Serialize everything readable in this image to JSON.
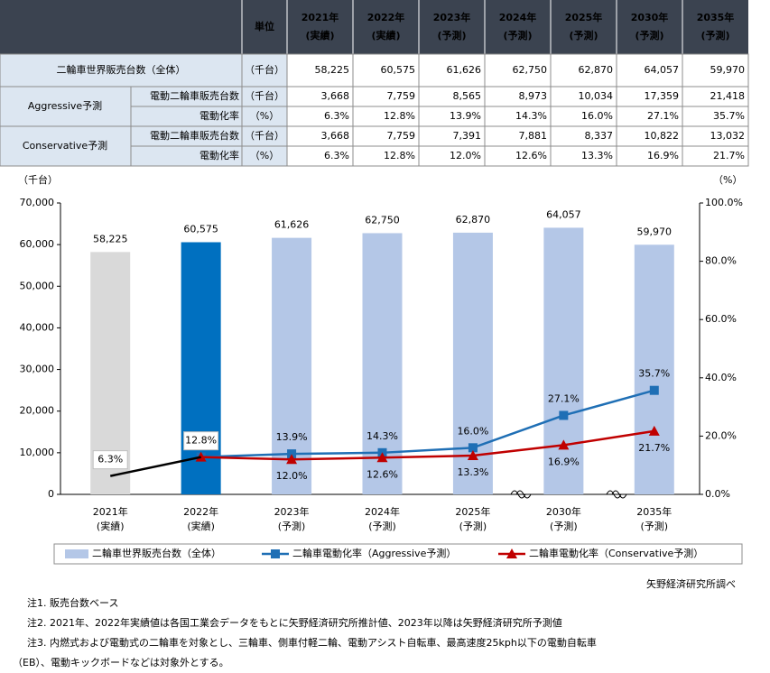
{
  "table": {
    "unit_header": "単位",
    "year_headers": [
      [
        "2021年",
        "(実績)"
      ],
      [
        "2022年",
        "(実績)"
      ],
      [
        "2023年",
        "(予測)"
      ],
      [
        "2024年",
        "(予測)"
      ],
      [
        "2025年",
        "(予測)"
      ],
      [
        "2030年",
        "(予測)"
      ],
      [
        "2035年",
        "(予測)"
      ]
    ],
    "total_row": {
      "label": "二輪車世界販売台数（全体）",
      "unit": "（千台）",
      "values": [
        "58,225",
        "60,575",
        "61,626",
        "62,750",
        "62,870",
        "64,057",
        "59,970"
      ]
    },
    "groups": [
      {
        "label": "Aggressive予測",
        "rows": [
          {
            "label": "電動二輪車販売台数",
            "unit": "（千台）",
            "values": [
              "3,668",
              "7,759",
              "8,565",
              "8,973",
              "10,034",
              "17,359",
              "21,418"
            ]
          },
          {
            "label": "電動化率",
            "unit": "（%）",
            "values": [
              "6.3%",
              "12.8%",
              "13.9%",
              "14.3%",
              "16.0%",
              "27.1%",
              "35.7%"
            ]
          }
        ]
      },
      {
        "label": "Conservative予測",
        "rows": [
          {
            "label": "電動二輪車販売台数",
            "unit": "（千台）",
            "values": [
              "3,668",
              "7,759",
              "7,391",
              "7,881",
              "8,337",
              "10,822",
              "13,032"
            ]
          },
          {
            "label": "電動化率",
            "unit": "（%）",
            "values": [
              "6.3%",
              "12.8%",
              "12.0%",
              "12.6%",
              "13.3%",
              "16.9%",
              "21.7%"
            ]
          }
        ]
      }
    ]
  },
  "chart_data": {
    "type": "bar",
    "y_label": "（千台）",
    "y2_label": "（%）",
    "categories": [
      [
        "2021年",
        "(実績)"
      ],
      [
        "2022年",
        "(実績)"
      ],
      [
        "2023年",
        "(予測)"
      ],
      [
        "2024年",
        "(予測)"
      ],
      [
        "2025年",
        "(予測)"
      ],
      [
        "2030年",
        "(予測)"
      ],
      [
        "2035年",
        "(予測)"
      ]
    ],
    "ylim": [
      0,
      70000
    ],
    "yticks": [
      0,
      {
        "value": 10000,
        "label": "10,000"
      },
      {
        "value": 20000,
        "label": "20,000"
      },
      {
        "value": 30000,
        "label": "30,000"
      },
      {
        "value": 40000,
        "label": "40,000"
      },
      {
        "value": 50000,
        "label": "50,000"
      },
      {
        "value": 60000,
        "label": "60,000"
      },
      {
        "value": 70000,
        "label": "70,000"
      }
    ],
    "y2lim": [
      0,
      100
    ],
    "y2ticks": [
      {
        "value": 0,
        "label": "0.0%"
      },
      {
        "value": 20,
        "label": "20.0%"
      },
      {
        "value": 40,
        "label": "40.0%"
      },
      {
        "value": 60,
        "label": "60.0%"
      },
      {
        "value": 80,
        "label": "80.0%"
      },
      {
        "value": 100,
        "label": "100.0%"
      }
    ],
    "grid": false,
    "series": [
      {
        "name": "二輪車世界販売台数（全体）",
        "type": "bar",
        "color": "#b4c7e7",
        "colors": [
          "#d9d9d9",
          "#0070c0",
          "#b4c7e7",
          "#b4c7e7",
          "#b4c7e7",
          "#b4c7e7",
          "#b4c7e7"
        ],
        "label_colors": [
          "#a6a6a6",
          "#0070c0",
          "#000000",
          "#000000",
          "#000000",
          "#000000",
          "#000000"
        ],
        "values": [
          58225,
          60575,
          61626,
          62750,
          62870,
          64057,
          59970
        ],
        "value_labels": [
          "58,225",
          "60,575",
          "61,626",
          "62,750",
          "62,870",
          "64,057",
          "59,970"
        ]
      },
      {
        "name": "二輪車電動化率（Aggressive予測）",
        "type": "line",
        "axis": "y2",
        "color": "#1f6fb5",
        "marker": "square",
        "values": [
          null,
          12.8,
          13.9,
          14.3,
          16.0,
          27.1,
          35.7
        ],
        "value_labels": [
          null,
          null,
          "13.9%",
          "14.3%",
          "16.0%",
          "27.1%",
          "35.7%"
        ]
      },
      {
        "name": "二輪車電動化率（Conservative予測）",
        "type": "line",
        "axis": "y2",
        "color": "#c00000",
        "marker": "triangle",
        "values": [
          null,
          12.8,
          12.0,
          12.6,
          13.3,
          16.9,
          21.7
        ],
        "value_labels": [
          null,
          null,
          "12.0%",
          "12.6%",
          "13.3%",
          "16.9%",
          "21.7%"
        ]
      },
      {
        "type": "line",
        "axis": "y2",
        "color": "#000000",
        "values": [
          6.3,
          12.8,
          null,
          null,
          null,
          null,
          null
        ],
        "value_labels": [
          "6.3%",
          "12.8%",
          null,
          null,
          null,
          null,
          null
        ]
      }
    ]
  },
  "source": "矢野経済研究所調べ",
  "notes": [
    "注1. 販売台数ベース",
    "注2. 2021年、2022年実績値は各国工業会データをもとに矢野経済研究所推計値、2023年以降は矢野経済研究所予測値",
    "注3. 内燃式および電動式の二輪車を対象とし、三輪車、側車付軽二輪、電動アシスト自転車、最高速度25kph以下の電動自転車",
    "（EB）、電動キックボードなどは対象外とする。"
  ]
}
